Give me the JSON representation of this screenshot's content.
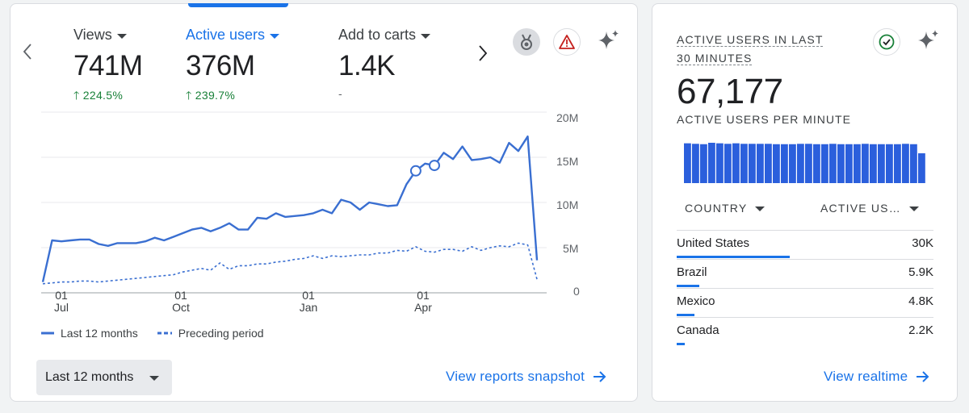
{
  "overview": {
    "metrics": [
      {
        "label": "Views",
        "value": "741M",
        "change": "224.5%",
        "trend": "up"
      },
      {
        "label": "Active users",
        "value": "376M",
        "change": "239.7%",
        "trend": "up"
      },
      {
        "label": "Add to carts",
        "value": "1.4K",
        "change": "-",
        "trend": "none"
      }
    ],
    "y_axis_ticks": [
      "20M",
      "15M",
      "10M",
      "5M",
      "0"
    ],
    "x_axis_ticks": [
      {
        "day": "01",
        "month": "Jul"
      },
      {
        "day": "01",
        "month": "Oct"
      },
      {
        "day": "01",
        "month": "Jan"
      },
      {
        "day": "01",
        "month": "Apr"
      }
    ],
    "legend": {
      "current": "Last 12 months",
      "previous": "Preceding period"
    },
    "date_range": "Last 12 months",
    "link": "View reports snapshot"
  },
  "chart_data": {
    "type": "line",
    "title": "Active users",
    "ylim": [
      0,
      20
    ],
    "y_unit": "M",
    "xlabel": "",
    "ylabel": "",
    "series": [
      {
        "name": "Last 12 months",
        "style": "solid",
        "values": [
          1.2,
          5.8,
          5.7,
          5.8,
          5.9,
          5.9,
          5.4,
          5.2,
          5.5,
          5.5,
          5.5,
          5.7,
          6.1,
          5.8,
          6.2,
          6.6,
          7.0,
          7.2,
          6.8,
          7.2,
          7.7,
          7.0,
          7.0,
          8.3,
          8.2,
          8.8,
          8.4,
          8.5,
          8.6,
          8.8,
          9.2,
          8.8,
          10.3,
          10.0,
          9.2,
          10.0,
          9.8,
          9.6,
          9.7,
          12.0,
          13.5,
          14.3,
          14.1,
          15.5,
          14.8,
          16.2,
          14.7,
          14.8,
          15.0,
          14.4,
          16.6,
          15.7,
          17.3,
          3.6
        ],
        "markers": [
          40,
          42
        ]
      },
      {
        "name": "Preceding period",
        "style": "dashed",
        "values": [
          1.0,
          1.1,
          1.2,
          1.2,
          1.3,
          1.3,
          1.2,
          1.3,
          1.4,
          1.5,
          1.6,
          1.7,
          1.8,
          1.9,
          2.0,
          2.3,
          2.5,
          2.7,
          2.5,
          3.3,
          2.6,
          3.0,
          3.0,
          3.2,
          3.2,
          3.4,
          3.5,
          3.7,
          3.8,
          4.1,
          3.8,
          4.1,
          4.0,
          4.1,
          4.2,
          4.2,
          4.4,
          4.4,
          4.7,
          4.6,
          5.1,
          4.6,
          4.5,
          4.8,
          4.8,
          4.6,
          5.1,
          4.7,
          5.0,
          5.2,
          5.1,
          5.5,
          5.3,
          1.5
        ]
      }
    ]
  },
  "realtime": {
    "title": "ACTIVE USERS IN LAST 30 MINUTES",
    "value": "67,177",
    "subtitle": "ACTIVE USERS PER MINUTE",
    "minute_values": [
      2270,
      2240,
      2220,
      2300,
      2270,
      2240,
      2270,
      2240,
      2240,
      2240,
      2240,
      2220,
      2220,
      2220,
      2240,
      2240,
      2220,
      2220,
      2240,
      2220,
      2220,
      2220,
      2240,
      2220,
      2220,
      2220,
      2220,
      2240,
      2220,
      1700
    ],
    "columns": {
      "country": "COUNTRY",
      "users": "ACTIVE US…"
    },
    "rows": [
      {
        "country": "United States",
        "value": "30K",
        "share": 1.0
      },
      {
        "country": "Brazil",
        "value": "5.9K",
        "share": 0.2
      },
      {
        "country": "Mexico",
        "value": "4.8K",
        "share": 0.16
      },
      {
        "country": "Canada",
        "value": "2.2K",
        "share": 0.073
      }
    ],
    "link": "View realtime"
  },
  "colors": {
    "accent": "#1a73e8",
    "positive": "#188038",
    "warning": "#c5221f",
    "chart_line": "#3a6fd1",
    "bar": "#2b5fdc"
  }
}
